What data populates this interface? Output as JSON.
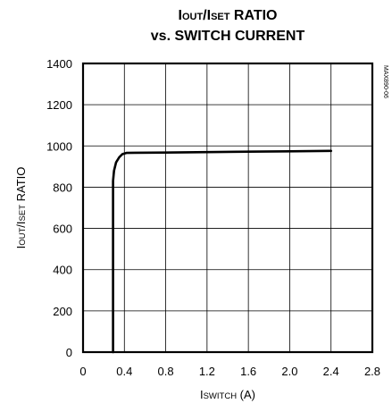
{
  "chart_data": {
    "type": "line",
    "title": {
      "line1_parts": [
        {
          "text": "I",
          "sub": false
        },
        {
          "text": "OUT",
          "sub": true
        },
        {
          "text": "/I",
          "sub": false
        },
        {
          "text": "SET",
          "sub": true
        },
        {
          "text": " RATIO",
          "sub": false
        }
      ],
      "line2": "vs. SWITCH CURRENT"
    },
    "ylabel_parts": [
      {
        "text": "I",
        "sub": false
      },
      {
        "text": "OUT",
        "sub": true
      },
      {
        "text": "/I",
        "sub": false
      },
      {
        "text": "SET",
        "sub": true
      },
      {
        "text": " RATIO",
        "sub": false
      }
    ],
    "xlabel_parts": [
      {
        "text": "I",
        "sub": false
      },
      {
        "text": "SWITCH",
        "sub": true
      },
      {
        "text": " (A)",
        "sub": false
      }
    ],
    "figure_id": "MAX890-06",
    "xlim": [
      0,
      2.8
    ],
    "ylim": [
      0,
      1400
    ],
    "x_ticks": [
      0,
      0.4,
      0.8,
      1.2,
      1.6,
      2.0,
      2.4,
      2.8
    ],
    "x_tick_labels": [
      "0",
      "0.4",
      "0.8",
      "1.2",
      "1.6",
      "2.0",
      "2.4",
      "2.8"
    ],
    "y_ticks": [
      0,
      200,
      400,
      600,
      800,
      1000,
      1200,
      1400
    ],
    "y_tick_labels": [
      "0",
      "200",
      "400",
      "600",
      "800",
      "1000",
      "1200",
      "1400"
    ],
    "grid": true,
    "series": [
      {
        "x": [
          0.29,
          0.29,
          0.3,
          0.32,
          0.35,
          0.38,
          0.42,
          0.5,
          0.8,
          1.2,
          1.6,
          2.0,
          2.4
        ],
        "y": [
          0,
          830,
          880,
          920,
          945,
          960,
          966,
          967,
          968,
          970,
          972,
          974,
          976
        ]
      }
    ],
    "colors": {
      "line": "#000000",
      "grid": "#000000",
      "frame": "#000000"
    }
  }
}
